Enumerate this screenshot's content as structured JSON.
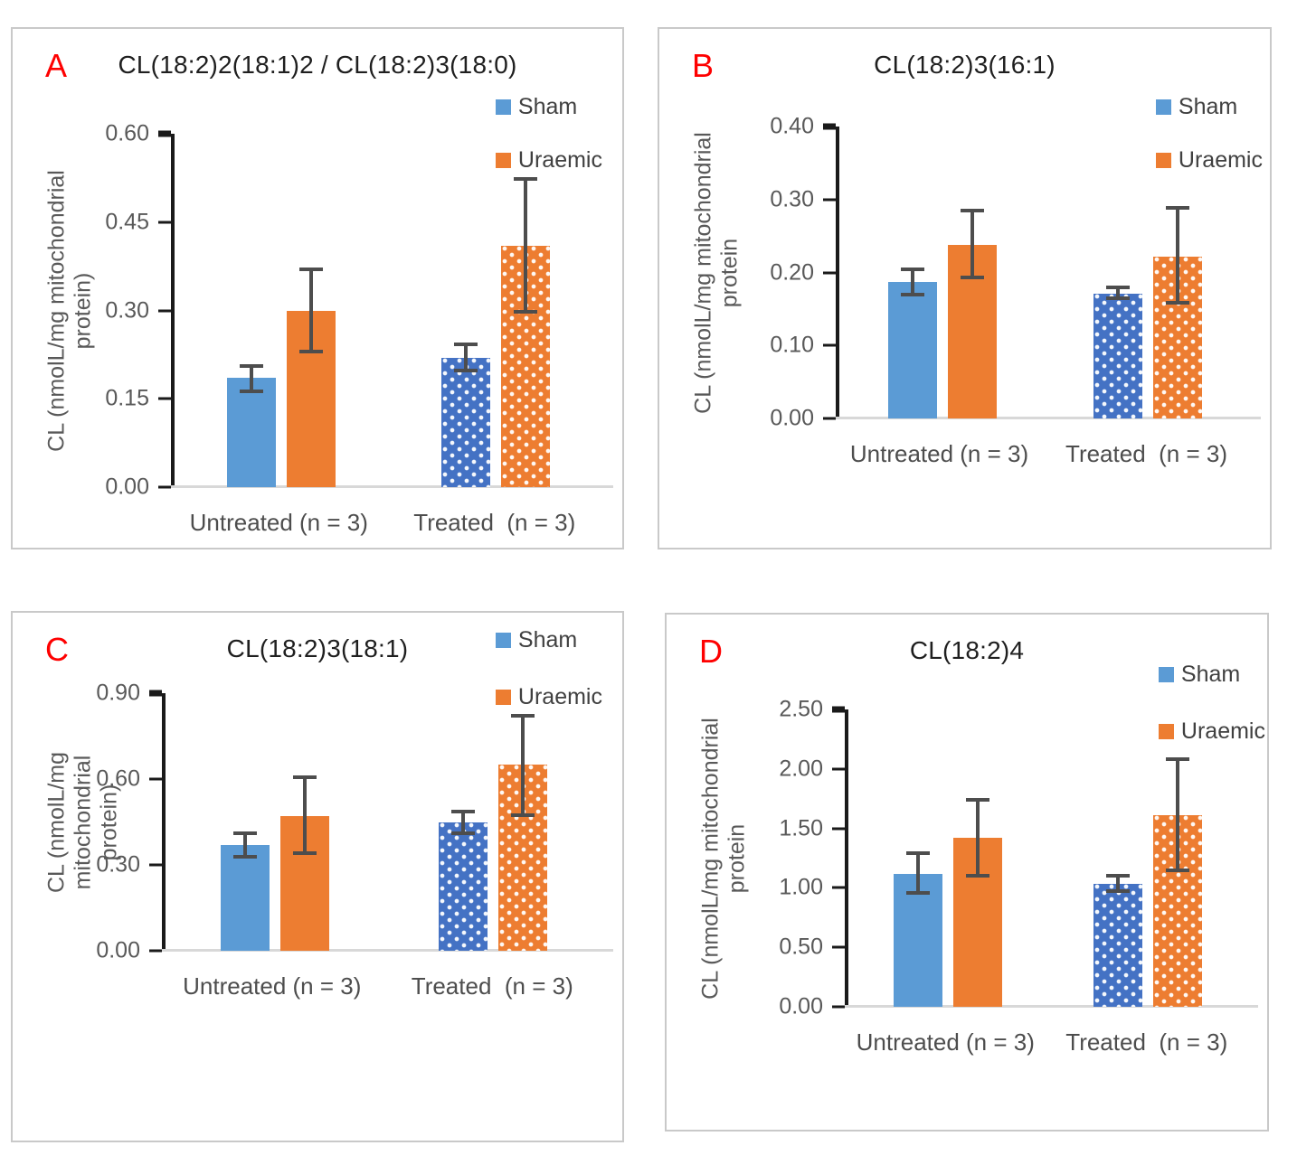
{
  "legend": {
    "sham": "Sham",
    "uraemic": "Uraemic"
  },
  "colors": {
    "sham_solid": "#5b9bd5",
    "sham_dotted": "#4472c4",
    "uraemic_solid": "#ed7d31",
    "uraemic_dotted": "#ed7d31",
    "error_bar": "#4d4d4d",
    "axis": "#1a1a1a",
    "baseline": "#d8d8d8",
    "panel_border": "#c9c9c9",
    "panel_letter": "#fe0000",
    "text_gray": "#595959"
  },
  "chart_data": [
    {
      "type": "bar",
      "panel_label": "A",
      "title": "CL(18:2)2(18:1)2 / CL(18:2)3(18:0)",
      "ylabel_line1": "CL (nmolL/mg mitochondrial",
      "ylabel_line2": "protein)",
      "categories": [
        "Untreated (n = 3)",
        "Treated  (n = 3)"
      ],
      "category_patterns": [
        "solid",
        "dotted"
      ],
      "ylim": [
        0,
        0.6
      ],
      "ytick_labels": [
        "0.60",
        "0.45",
        "0.30",
        "0.15",
        "0.00"
      ],
      "legend_position": "top-right",
      "series": [
        {
          "name": "Sham",
          "values": [
            0.185,
            0.22
          ],
          "err_low": [
            0.163,
            0.198
          ],
          "err_high": [
            0.206,
            0.242
          ]
        },
        {
          "name": "Uraemic",
          "values": [
            0.3,
            0.41
          ],
          "err_low": [
            0.23,
            0.298
          ],
          "err_high": [
            0.37,
            0.523
          ]
        }
      ]
    },
    {
      "type": "bar",
      "panel_label": "B",
      "title": "CL(18:2)3(16:1)",
      "ylabel_line1": "CL (nmolL/mg mitochondrial",
      "ylabel_line2": "protein",
      "categories": [
        "Untreated (n = 3)",
        "Treated  (n = 3)"
      ],
      "category_patterns": [
        "solid",
        "dotted"
      ],
      "ylim": [
        0,
        0.4
      ],
      "ytick_labels": [
        "0.40",
        "0.30",
        "0.20",
        "0.10",
        "0.00"
      ],
      "legend_position": "top-right",
      "series": [
        {
          "name": "Sham",
          "values": [
            0.187,
            0.171
          ],
          "err_low": [
            0.17,
            0.165
          ],
          "err_high": [
            0.204,
            0.179
          ]
        },
        {
          "name": "Uraemic",
          "values": [
            0.238,
            0.222
          ],
          "err_low": [
            0.193,
            0.158
          ],
          "err_high": [
            0.285,
            0.288
          ]
        }
      ]
    },
    {
      "type": "bar",
      "panel_label": "C",
      "title": "CL(18:2)3(18:1)",
      "ylabel_line1": "CL (nmolL/mg mitochondrial",
      "ylabel_line2": "protein)",
      "categories": [
        "Untreated (n = 3)",
        "Treated  (n = 3)"
      ],
      "category_patterns": [
        "solid",
        "dotted"
      ],
      "ylim": [
        0,
        0.9
      ],
      "ytick_labels": [
        "0.90",
        "0.60",
        "0.30",
        "0.00"
      ],
      "legend_position": "top-right",
      "series": [
        {
          "name": "Sham",
          "values": [
            0.37,
            0.448
          ],
          "err_low": [
            0.33,
            0.41
          ],
          "err_high": [
            0.41,
            0.487
          ]
        },
        {
          "name": "Uraemic",
          "values": [
            0.47,
            0.649
          ],
          "err_low": [
            0.34,
            0.475
          ],
          "err_high": [
            0.605,
            0.82
          ]
        }
      ]
    },
    {
      "type": "bar",
      "panel_label": "D",
      "title": "CL(18:2)4",
      "ylabel_line1": "CL (nmolL/mg mitochondrial",
      "ylabel_line2": "protein",
      "categories": [
        "Untreated (n = 3)",
        "Treated  (n = 3)"
      ],
      "category_patterns": [
        "solid",
        "dotted"
      ],
      "ylim": [
        0,
        2.5
      ],
      "ytick_labels": [
        "2.50",
        "2.00",
        "1.50",
        "1.00",
        "0.50",
        "0.00"
      ],
      "legend_position": "top-right",
      "series": [
        {
          "name": "Sham",
          "values": [
            1.12,
            1.03
          ],
          "err_low": [
            0.96,
            0.97
          ],
          "err_high": [
            1.29,
            1.1
          ]
        },
        {
          "name": "Uraemic",
          "values": [
            1.42,
            1.61
          ],
          "err_low": [
            1.1,
            1.15
          ],
          "err_high": [
            1.74,
            2.08
          ]
        }
      ]
    }
  ]
}
